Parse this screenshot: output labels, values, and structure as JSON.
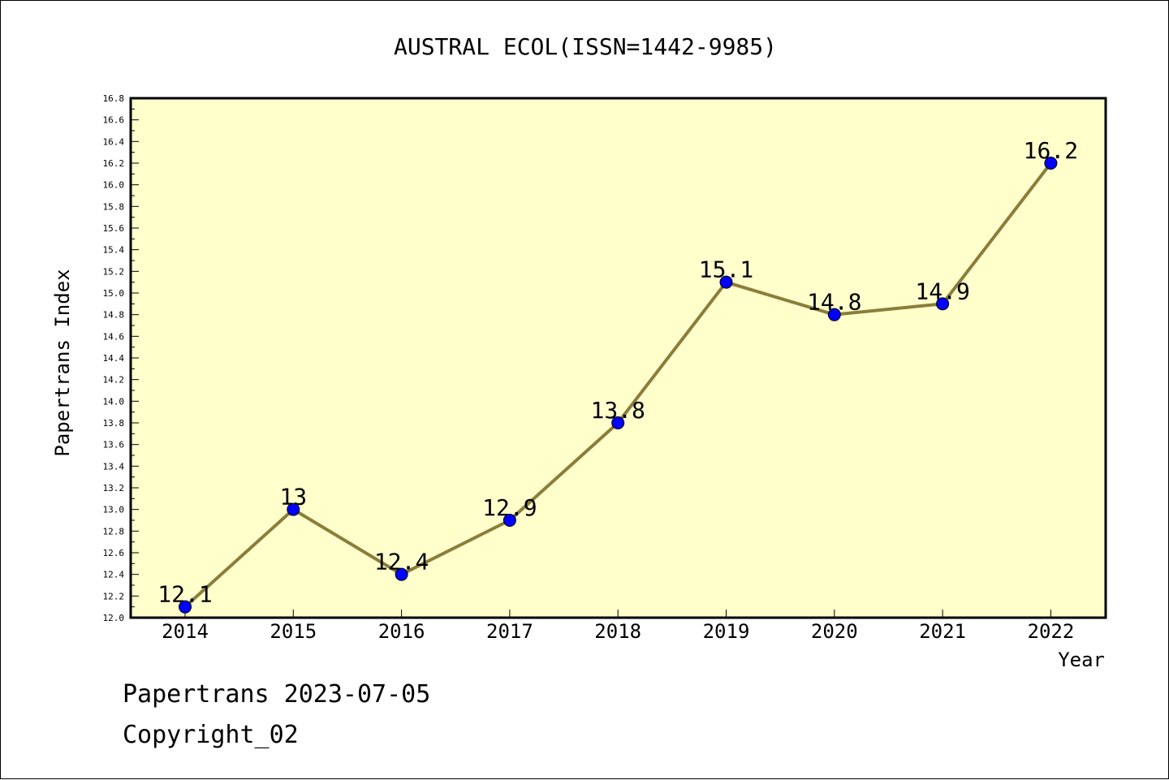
{
  "footer": {
    "line1": "Papertrans 2023-07-05",
    "line2": "Copyright_02"
  },
  "chart_data": {
    "type": "line",
    "title": "AUSTRAL ECOL(ISSN=1442-9985)",
    "xlabel": "Year",
    "ylabel": "Papertrans Index",
    "x": [
      "2014",
      "2015",
      "2016",
      "2017",
      "2018",
      "2019",
      "2020",
      "2021",
      "2022"
    ],
    "series": [
      {
        "values": [
          12.1,
          13,
          12.4,
          12.9,
          13.8,
          15.1,
          14.8,
          14.9,
          16.2
        ],
        "labels": [
          "12.1",
          "13",
          "12.4",
          "12.9",
          "13.8",
          "15.1",
          "14.8",
          "14.9",
          "16.2"
        ]
      }
    ],
    "ylim": [
      12.0,
      16.8
    ],
    "ytick_step": 0.2,
    "grid": false,
    "colors": {
      "plot_background": "#ffffcc",
      "line": "#8b7d3a",
      "marker": "#0000ff"
    }
  }
}
